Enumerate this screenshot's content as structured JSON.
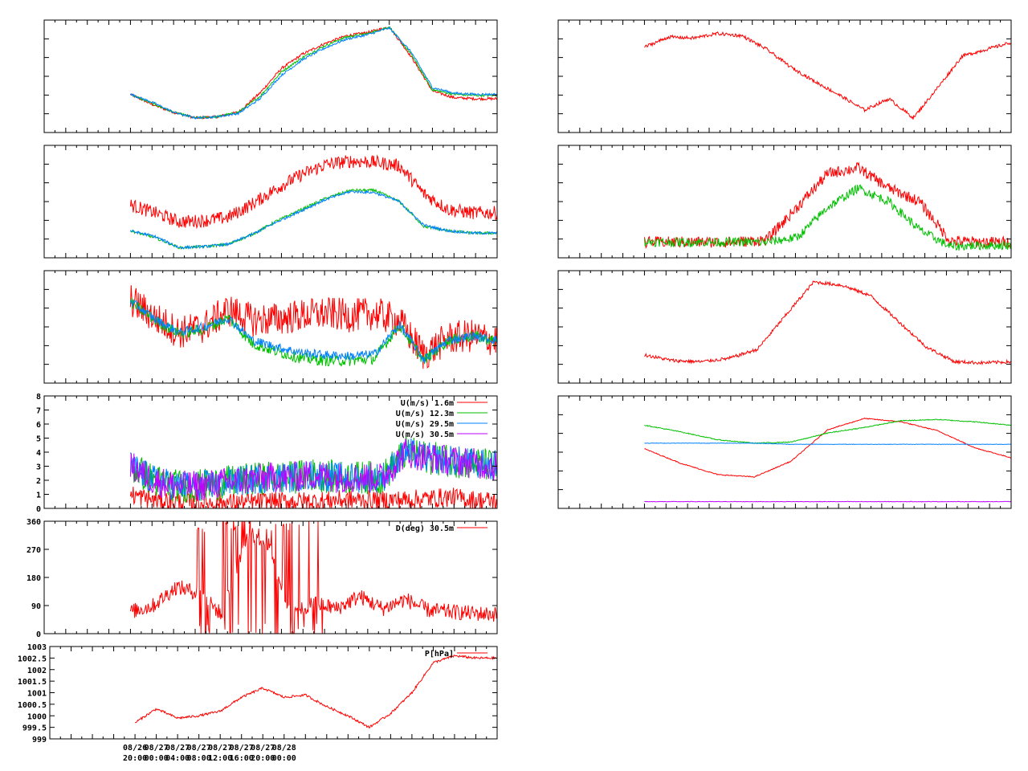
{
  "chart_data": [
    {
      "id": "p1",
      "type": "line",
      "x_range_hours": [
        0,
        84
      ],
      "ylim": [
        0,
        1
      ],
      "y_ticks": [],
      "show_y_labels": false,
      "show_x_labels": false,
      "series": [
        {
          "color": "#ff0000",
          "start": 16,
          "end": 84,
          "noise": 0.012,
          "values": [
            0.34,
            0.25,
            0.18,
            0.13,
            0.14,
            0.18,
            0.35,
            0.57,
            0.7,
            0.79,
            0.86,
            0.89,
            0.94,
            0.68,
            0.37,
            0.31,
            0.3,
            0.3
          ]
        },
        {
          "color": "#00c000",
          "start": 16,
          "end": 84,
          "noise": 0.01,
          "values": [
            0.34,
            0.26,
            0.18,
            0.13,
            0.14,
            0.18,
            0.32,
            0.54,
            0.67,
            0.77,
            0.85,
            0.88,
            0.94,
            0.7,
            0.38,
            0.34,
            0.33,
            0.33
          ]
        },
        {
          "color": "#0080ff",
          "start": 16,
          "end": 84,
          "noise": 0.01,
          "values": [
            0.34,
            0.27,
            0.18,
            0.13,
            0.14,
            0.17,
            0.3,
            0.51,
            0.65,
            0.75,
            0.83,
            0.87,
            0.93,
            0.72,
            0.4,
            0.35,
            0.34,
            0.34
          ]
        }
      ]
    },
    {
      "id": "p2",
      "type": "line",
      "x_range_hours": [
        0,
        84
      ],
      "ylim": [
        0,
        1
      ],
      "y_ticks": [],
      "show_y_labels": false,
      "show_x_labels": false,
      "series": [
        {
          "color": "#ff0000",
          "start": 16,
          "end": 84,
          "noise": 0.06,
          "values": [
            0.47,
            0.4,
            0.32,
            0.33,
            0.36,
            0.48,
            0.62,
            0.74,
            0.83,
            0.86,
            0.85,
            0.82,
            0.57,
            0.43,
            0.4,
            0.4
          ]
        },
        {
          "color": "#00c000",
          "start": 16,
          "end": 84,
          "noise": 0.012,
          "values": [
            0.24,
            0.18,
            0.09,
            0.1,
            0.12,
            0.21,
            0.33,
            0.43,
            0.53,
            0.6,
            0.6,
            0.5,
            0.28,
            0.24,
            0.22,
            0.22
          ]
        },
        {
          "color": "#0080ff",
          "start": 16,
          "end": 84,
          "noise": 0.012,
          "values": [
            0.24,
            0.19,
            0.09,
            0.1,
            0.12,
            0.21,
            0.32,
            0.42,
            0.52,
            0.59,
            0.58,
            0.5,
            0.29,
            0.24,
            0.22,
            0.22
          ]
        }
      ]
    },
    {
      "id": "p3",
      "type": "line",
      "x_range_hours": [
        0,
        84
      ],
      "ylim": [
        0,
        1
      ],
      "y_ticks": [],
      "show_y_labels": false,
      "show_x_labels": false,
      "series": [
        {
          "color": "#ff0000",
          "start": 16,
          "end": 84,
          "noise": 0.15,
          "values": [
            0.74,
            0.58,
            0.45,
            0.5,
            0.65,
            0.56,
            0.57,
            0.6,
            0.62,
            0.6,
            0.62,
            0.55,
            0.25,
            0.4,
            0.42,
            0.38
          ]
        },
        {
          "color": "#00c000",
          "start": 16,
          "end": 84,
          "noise": 0.05,
          "values": [
            0.72,
            0.56,
            0.44,
            0.48,
            0.58,
            0.35,
            0.28,
            0.22,
            0.2,
            0.2,
            0.22,
            0.52,
            0.2,
            0.38,
            0.42,
            0.37
          ]
        },
        {
          "color": "#0080ff",
          "start": 16,
          "end": 84,
          "noise": 0.04,
          "values": [
            0.73,
            0.57,
            0.45,
            0.5,
            0.58,
            0.38,
            0.32,
            0.27,
            0.25,
            0.24,
            0.26,
            0.52,
            0.21,
            0.38,
            0.42,
            0.38
          ]
        }
      ]
    },
    {
      "id": "p4",
      "type": "line",
      "x_range_hours": [
        0,
        84
      ],
      "ylim": [
        0,
        8
      ],
      "y_ticks": [
        0,
        1,
        2,
        3,
        4,
        5,
        6,
        7,
        8
      ],
      "show_y_labels": true,
      "show_x_labels": false,
      "series": [
        {
          "name": "U(m/s)  1.6m",
          "color": "#ff0000",
          "start": 16,
          "end": 84,
          "noise": 0.7,
          "values": [
            1.0,
            0.6,
            0.5,
            0.4,
            0.4,
            0.4,
            0.5,
            0.5,
            0.5,
            0.6,
            0.6,
            0.6,
            0.6,
            0.7,
            0.8,
            0.6,
            0.5
          ]
        },
        {
          "name": "U(m/s) 12.3m",
          "color": "#00c000",
          "start": 16,
          "end": 84,
          "noise": 1.2,
          "values": [
            3.0,
            2.0,
            1.6,
            1.6,
            1.8,
            2.0,
            2.2,
            2.2,
            2.4,
            2.2,
            2.2,
            2.2,
            4.0,
            3.6,
            3.4,
            3.2,
            3.0
          ]
        },
        {
          "name": "U(m/s) 29.5m",
          "color": "#0080ff",
          "start": 16,
          "end": 84,
          "noise": 1.1,
          "values": [
            3.0,
            2.0,
            1.6,
            1.6,
            1.8,
            2.0,
            2.2,
            2.2,
            2.4,
            2.2,
            2.2,
            2.2,
            4.0,
            3.6,
            3.4,
            3.2,
            3.0
          ]
        },
        {
          "name": "U(m/s) 30.5m",
          "color": "#c000ff",
          "start": 16,
          "end": 84,
          "noise": 1.1,
          "values": [
            3.0,
            2.0,
            1.6,
            1.6,
            1.8,
            2.0,
            2.2,
            2.2,
            2.4,
            2.2,
            2.2,
            2.2,
            4.0,
            3.6,
            3.4,
            3.2,
            3.0
          ]
        }
      ]
    },
    {
      "id": "p5",
      "type": "line",
      "x_range_hours": [
        0,
        84
      ],
      "ylim": [
        0,
        360
      ],
      "y_ticks": [
        0,
        90,
        180,
        270,
        360
      ],
      "show_y_labels": true,
      "show_x_labels": false,
      "series": [
        {
          "name": "D(deg)  30.5m",
          "color": "#ff0000",
          "start": 16,
          "end": 84,
          "noise": 25,
          "spikes": [
            [
              28,
              52
            ]
          ],
          "values": [
            70,
            90,
            150,
            130,
            60,
            300,
            290,
            60,
            100,
            80,
            120,
            80,
            110,
            75,
            70,
            65,
            62
          ]
        }
      ]
    },
    {
      "id": "p6",
      "type": "line",
      "x_range_hours": [
        0,
        84
      ],
      "ylim": [
        999,
        1003
      ],
      "y_ticks": [
        999,
        999.5,
        1000,
        1000.5,
        1001,
        1001.5,
        1002,
        1002.5,
        1003
      ],
      "show_y_labels": true,
      "show_x_labels": true,
      "x_tick_labels": [
        [
          "08/26",
          "20:00"
        ],
        [
          "08/27",
          "00:00"
        ],
        [
          "08/27",
          "04:00"
        ],
        [
          "08/27",
          "08:00"
        ],
        [
          "08/27",
          "12:00"
        ],
        [
          "08/27",
          "16:00"
        ],
        [
          "08/27",
          "20:00"
        ],
        [
          "08/28",
          "00:00"
        ]
      ],
      "series": [
        {
          "name": "P[hPa]",
          "color": "#ff0000",
          "start": 16,
          "end": 84,
          "noise": 0.05,
          "values": [
            999.7,
            1000.3,
            999.9,
            1000.0,
            1000.2,
            1000.8,
            1001.2,
            1000.8,
            1000.9,
            1000.4,
            1000.0,
            999.5,
            1000.1,
            1001.0,
            1002.3,
            1002.6,
            1002.5,
            1002.5
          ]
        }
      ]
    },
    {
      "id": "q1",
      "type": "line",
      "x_range_hours": [
        0,
        84
      ],
      "ylim": [
        0,
        1
      ],
      "y_ticks": [],
      "show_y_labels": false,
      "show_x_labels": false,
      "series": [
        {
          "color": "#ff0000",
          "start": 16,
          "end": 84,
          "noise": 0.015,
          "values": [
            0.76,
            0.85,
            0.84,
            0.88,
            0.86,
            0.74,
            0.58,
            0.45,
            0.33,
            0.2,
            0.3,
            0.13,
            0.4,
            0.68,
            0.74,
            0.8
          ]
        }
      ]
    },
    {
      "id": "q2",
      "type": "line",
      "x_range_hours": [
        0,
        84
      ],
      "ylim": [
        0,
        1
      ],
      "y_ticks": [],
      "show_y_labels": false,
      "show_x_labels": false,
      "series": [
        {
          "color": "#ff0000",
          "start": 16,
          "end": 84,
          "noise": 0.05,
          "values": [
            0.14,
            0.14,
            0.14,
            0.14,
            0.16,
            0.45,
            0.75,
            0.8,
            0.62,
            0.5,
            0.15,
            0.14,
            0.14
          ]
        },
        {
          "color": "#00c000",
          "start": 16,
          "end": 84,
          "noise": 0.04,
          "values": [
            0.14,
            0.14,
            0.14,
            0.14,
            0.14,
            0.18,
            0.45,
            0.62,
            0.5,
            0.25,
            0.1,
            0.11,
            0.11
          ]
        }
      ]
    },
    {
      "id": "q3",
      "type": "line",
      "x_range_hours": [
        0,
        84
      ],
      "ylim": [
        0,
        1
      ],
      "y_ticks": [],
      "show_y_labels": false,
      "show_x_labels": false,
      "series": [
        {
          "color": "#ff0000",
          "start": 16,
          "end": 84,
          "noise": 0.015,
          "values": [
            0.25,
            0.2,
            0.19,
            0.22,
            0.3,
            0.6,
            0.9,
            0.87,
            0.78,
            0.55,
            0.32,
            0.19,
            0.18,
            0.19
          ]
        }
      ]
    },
    {
      "id": "q4",
      "type": "line",
      "x_range_hours": [
        0,
        84
      ],
      "ylim": [
        0,
        1
      ],
      "y_ticks": [],
      "show_y_labels": false,
      "show_x_labels": false,
      "series": [
        {
          "color": "#ff0000",
          "start": 16,
          "end": 84,
          "noise": 0.004,
          "values": [
            0.53,
            0.4,
            0.3,
            0.28,
            0.42,
            0.7,
            0.8,
            0.77,
            0.69,
            0.54,
            0.45
          ]
        },
        {
          "color": "#00c000",
          "start": 16,
          "end": 84,
          "noise": 0.004,
          "values": [
            0.74,
            0.68,
            0.61,
            0.58,
            0.59,
            0.67,
            0.72,
            0.78,
            0.79,
            0.77,
            0.74
          ]
        },
        {
          "color": "#0080ff",
          "start": 16,
          "end": 84,
          "noise": 0.002,
          "values": [
            0.58,
            0.58,
            0.58,
            0.58,
            0.57,
            0.57,
            0.57,
            0.57,
            0.57,
            0.57,
            0.57
          ]
        },
        {
          "color": "#c000ff",
          "start": 16,
          "end": 84,
          "noise": 0.002,
          "values": [
            0.06,
            0.06,
            0.06,
            0.06,
            0.06,
            0.06,
            0.06,
            0.06,
            0.06,
            0.06,
            0.06
          ]
        }
      ]
    }
  ]
}
